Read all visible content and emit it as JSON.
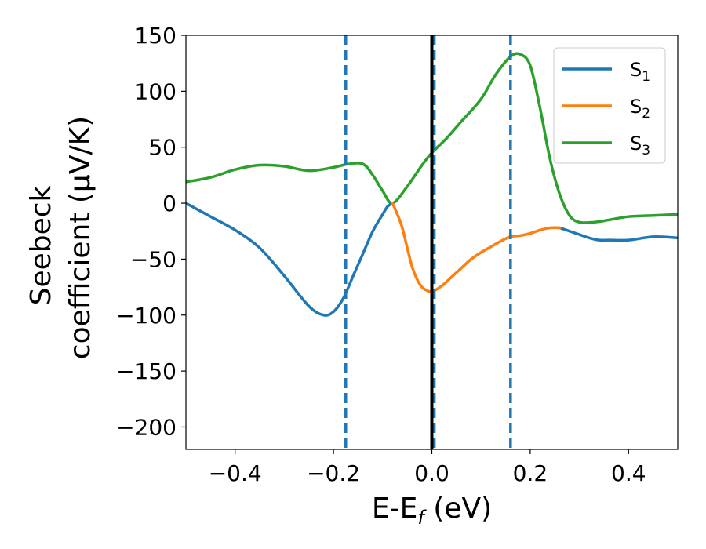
{
  "chart_data": {
    "type": "line",
    "title": "",
    "xlabel": {
      "main": "E-E",
      "sub": "f",
      "rest": " (eV)"
    },
    "ylabel": {
      "line1": "Seebeck",
      "line2": "coefficient  (μV/K)"
    },
    "xlim": [
      -0.5,
      0.5
    ],
    "ylim": [
      -220,
      150
    ],
    "xticks": [
      -0.4,
      -0.2,
      0.0,
      0.2,
      0.4
    ],
    "xtick_labels": [
      "−0.4",
      "−0.2",
      "0.0",
      "0.2",
      "0.4"
    ],
    "yticks": [
      150,
      100,
      50,
      0,
      -50,
      -100,
      -150,
      -200
    ],
    "ytick_labels": [
      "150",
      "100",
      "50",
      "0",
      "−50",
      "−100",
      "−150",
      "−200"
    ],
    "grid": false,
    "legend_position": "top-right",
    "series": [
      {
        "name": "S",
        "subscript": "1",
        "color": "#1f77b4",
        "x": [
          -0.5,
          -0.45,
          -0.4,
          -0.35,
          -0.3,
          -0.25,
          -0.22,
          -0.2,
          -0.18,
          -0.16,
          -0.14,
          -0.12,
          -0.1,
          -0.09,
          -0.08
        ],
        "y": [
          0,
          -12,
          -24,
          -40,
          -65,
          -92,
          -100,
          -97,
          -85,
          -65,
          -45,
          -25,
          -10,
          -3,
          0
        ]
      },
      {
        "name": "S",
        "subscript": "2",
        "color": "#ff7f0e",
        "x": [
          -0.08,
          -0.07,
          -0.06,
          -0.05,
          -0.04,
          -0.03,
          -0.02,
          -0.01,
          0.0,
          0.02,
          0.04,
          0.06,
          0.08,
          0.1,
          0.12,
          0.14,
          0.16,
          0.18,
          0.2,
          0.22,
          0.24,
          0.26
        ],
        "y": [
          0,
          -10,
          -22,
          -40,
          -57,
          -68,
          -75,
          -78,
          -79,
          -74,
          -66,
          -58,
          -50,
          -44,
          -39,
          -34,
          -30,
          -29,
          -27,
          -24,
          -22,
          -22
        ]
      },
      {
        "name": "S",
        "subscript": "3",
        "color": "#2ca02c",
        "x": [
          -0.5,
          -0.45,
          -0.4,
          -0.35,
          -0.3,
          -0.25,
          -0.2,
          -0.17,
          -0.14,
          -0.12,
          -0.1,
          -0.08,
          -0.05,
          -0.02,
          0.0,
          0.03,
          0.06,
          0.1,
          0.13,
          0.16,
          0.18,
          0.2,
          0.22,
          0.24,
          0.26,
          0.28,
          0.3,
          0.33,
          0.36,
          0.4,
          0.45,
          0.5
        ],
        "y": [
          19,
          23,
          30,
          34,
          33,
          29,
          32,
          35,
          35,
          25,
          11,
          0,
          15,
          34,
          45,
          58,
          73,
          93,
          115,
          131,
          133,
          123,
          85,
          40,
          8,
          -11,
          -17,
          -17,
          -15,
          -12,
          -11,
          -10
        ]
      },
      {
        "name": "",
        "subscript": "",
        "color": "#1f77b4",
        "x": [
          0.26,
          0.28,
          0.3,
          0.32,
          0.34,
          0.36,
          0.4,
          0.45,
          0.5
        ],
        "y": [
          -22,
          -25,
          -28,
          -31,
          -33,
          -33,
          -33,
          -30,
          -31
        ]
      }
    ],
    "vlines": [
      {
        "x": -0.175,
        "color": "#1f77b4",
        "style": "dashed"
      },
      {
        "x": 0.005,
        "color": "#1f77b4",
        "style": "dashed"
      },
      {
        "x": 0.16,
        "color": "#1f77b4",
        "style": "dashed"
      },
      {
        "x": 0.0,
        "color": "#000000",
        "style": "solid"
      }
    ]
  }
}
